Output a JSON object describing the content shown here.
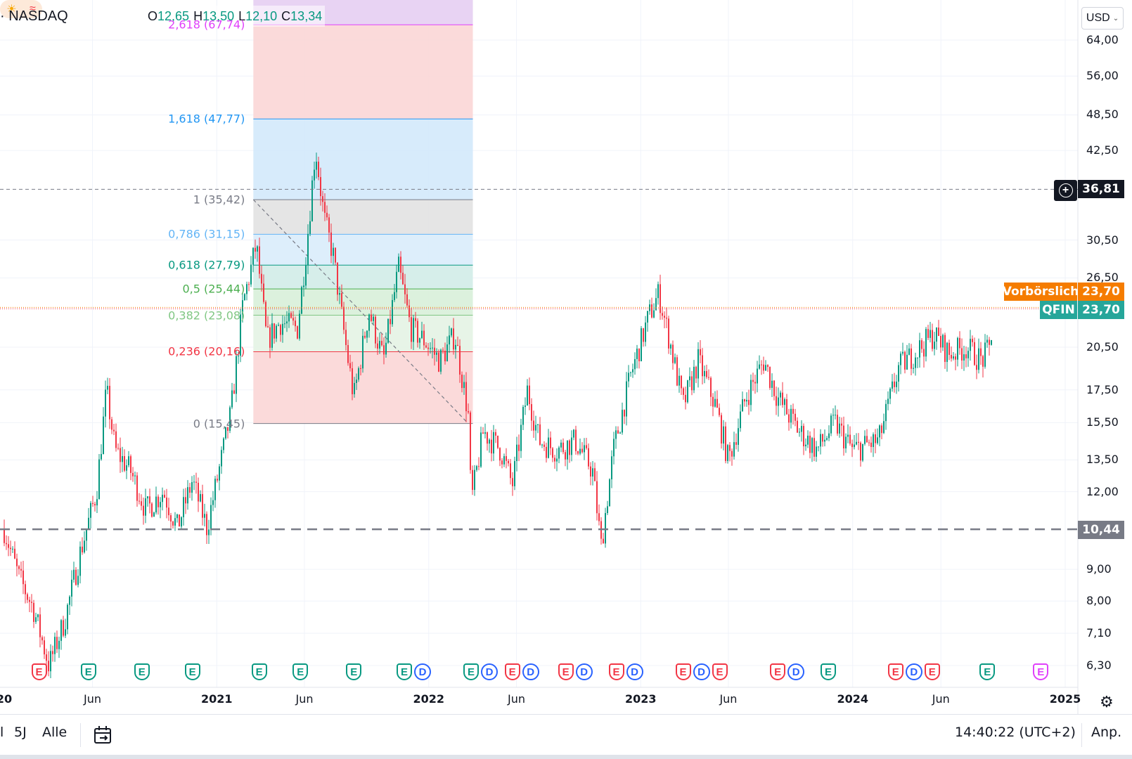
{
  "header": {
    "symbol": "· NASDAQ",
    "open_key": "O",
    "open_val": "12,65",
    "high_key": "H",
    "high_val": "13,50",
    "low_key": "L",
    "low_val": "12,10",
    "close_key": "C",
    "close_val": "13,34",
    "sun_icon": "☀",
    "wave_icon": "≈"
  },
  "currency": {
    "label": "USD",
    "chevron": "⌄"
  },
  "price_tags": {
    "crosshair": "36,81",
    "premarket_label": "Vorbörslich",
    "premarket_value": "23,70",
    "symbol_label": "QFIN",
    "symbol_value": "23,70",
    "support_value": "10,44"
  },
  "time_axis": {
    "labels": [
      "20",
      "Jun",
      "2021",
      "Jun",
      "2022",
      "Jun",
      "2023",
      "Jun",
      "2024",
      "Jun",
      "2025"
    ]
  },
  "bottom_bar": {
    "btn_partial": "l",
    "btn_5y": "5J",
    "btn_all": "Alle",
    "clock": "14:40:22 (UTC+2)",
    "adjust": "Anp."
  },
  "colors": {
    "up": "#089981",
    "down": "#f23645",
    "premarket": "#f57c00",
    "symbol_tag": "#26a69a",
    "support": "#787b86"
  },
  "chart_data": {
    "type": "candlestick",
    "symbol": "QFIN",
    "exchange": "NASDAQ",
    "y_scale": "log",
    "ylim": [
      5.9,
      71
    ],
    "y_ticks": [
      "64,00",
      "56,00",
      "48,50",
      "42,50",
      "30,50",
      "26,50",
      "20,50",
      "17,50",
      "15,50",
      "13,50",
      "12,00",
      "9,00",
      "8,00",
      "7,10",
      "6,30"
    ],
    "x_range": [
      "2020-01",
      "2025-01"
    ],
    "x_labels": [
      "20",
      "Jun",
      "2021",
      "Jun",
      "2022",
      "Jun",
      "2023",
      "Jun",
      "2024",
      "Jun",
      "2025"
    ],
    "price_path": [
      [
        "2020-01-01",
        10.44
      ],
      [
        "2020-01-25",
        8.8
      ],
      [
        "2020-02-20",
        7.8
      ],
      [
        "2020-03-18",
        6.3
      ],
      [
        "2020-04-15",
        7.5
      ],
      [
        "2020-05-10",
        9.5
      ],
      [
        "2020-06-08",
        12.0
      ],
      [
        "2020-06-25",
        17.5
      ],
      [
        "2020-07-10",
        14.0
      ],
      [
        "2020-08-05",
        13.0
      ],
      [
        "2020-09-01",
        11.2
      ],
      [
        "2020-10-01",
        12.0
      ],
      [
        "2020-10-25",
        10.5
      ],
      [
        "2020-11-20",
        12.5
      ],
      [
        "2020-12-15",
        10.5
      ],
      [
        "2021-01-05",
        13.0
      ],
      [
        "2021-01-25",
        16.0
      ],
      [
        "2021-02-15",
        24.0
      ],
      [
        "2021-03-10",
        30.0
      ],
      [
        "2021-03-28",
        21.0
      ],
      [
        "2021-04-20",
        22.5
      ],
      [
        "2021-05-20",
        22.0
      ],
      [
        "2021-06-05",
        30.0
      ],
      [
        "2021-06-20",
        43.0
      ],
      [
        "2021-07-05",
        33.0
      ],
      [
        "2021-07-20",
        29.0
      ],
      [
        "2021-08-10",
        21.0
      ],
      [
        "2021-08-25",
        17.0
      ],
      [
        "2021-09-20",
        23.5
      ],
      [
        "2021-10-15",
        19.5
      ],
      [
        "2021-11-10",
        27.5
      ],
      [
        "2021-12-01",
        22.0
      ],
      [
        "2021-12-25",
        21.0
      ],
      [
        "2022-01-20",
        19.5
      ],
      [
        "2022-02-15",
        21.5
      ],
      [
        "2022-03-10",
        16.0
      ],
      [
        "2022-03-15",
        11.5
      ],
      [
        "2022-04-05",
        15.0
      ],
      [
        "2022-05-05",
        14.0
      ],
      [
        "2022-05-25",
        12.3
      ],
      [
        "2022-06-20",
        17.5
      ],
      [
        "2022-07-10",
        14.5
      ],
      [
        "2022-08-10",
        14.0
      ],
      [
        "2022-09-10",
        14.5
      ],
      [
        "2022-10-10",
        13.0
      ],
      [
        "2022-10-25",
        9.8
      ],
      [
        "2022-11-15",
        14.0
      ],
      [
        "2022-12-15",
        18.5
      ],
      [
        "2023-01-15",
        23.0
      ],
      [
        "2023-02-01",
        25.0
      ],
      [
        "2023-02-20",
        21.0
      ],
      [
        "2023-03-15",
        16.5
      ],
      [
        "2023-04-10",
        19.5
      ],
      [
        "2023-05-10",
        16.5
      ],
      [
        "2023-06-01",
        13.5
      ],
      [
        "2023-07-01",
        17.0
      ],
      [
        "2023-08-01",
        19.5
      ],
      [
        "2023-08-25",
        17.0
      ],
      [
        "2023-10-01",
        15.0
      ],
      [
        "2023-11-01",
        14.0
      ],
      [
        "2023-12-01",
        15.5
      ],
      [
        "2024-01-01",
        14.0
      ],
      [
        "2024-02-15",
        14.5
      ],
      [
        "2024-03-20",
        19.0
      ],
      [
        "2024-04-15",
        20.0
      ],
      [
        "2024-05-20",
        21.5
      ],
      [
        "2024-06-15",
        20.0
      ],
      [
        "2024-07-15",
        20.5
      ],
      [
        "2024-08-10",
        19.5
      ],
      [
        "2024-08-25",
        20.5
      ],
      [
        "2024-08-30",
        23.7
      ]
    ],
    "last_price": 23.7,
    "ohlc_hovered": {
      "open": 12.65,
      "high": 13.5,
      "low": 12.1,
      "close": 13.34
    },
    "crosshair_price": 36.81,
    "horizontal_line": 10.44,
    "fibonacci": {
      "from": [
        "2021-03-05",
        35.42
      ],
      "to": [
        "2022-03-10",
        15.45
      ],
      "x_end": "2022-03-18",
      "levels": [
        {
          "ratio": "2,618",
          "value": "67,74",
          "label": "2,618 (67,74)",
          "color": "#e040fb"
        },
        {
          "ratio": "1,618",
          "value": "47,77",
          "label": "1,618 (47,77)",
          "color": "#2196f3"
        },
        {
          "ratio": "1",
          "value": "35,42",
          "label": "1 (35,42)",
          "color": "#787b86"
        },
        {
          "ratio": "0,786",
          "value": "31,15",
          "label": "0,786 (31,15)",
          "color": "#64b5f6"
        },
        {
          "ratio": "0,618",
          "value": "27,79",
          "label": "0,618 (27,79)",
          "color": "#089981"
        },
        {
          "ratio": "0,5",
          "value": "25,44",
          "label": "0,5 (25,44)",
          "color": "#4caf50"
        },
        {
          "ratio": "0,382",
          "value": "23,08",
          "label": "0,382 (23,08)",
          "color": "#81c784"
        },
        {
          "ratio": "0,236",
          "value": "20,16",
          "label": "0,236 (20,16)",
          "color": "#f23645"
        },
        {
          "ratio": "0",
          "value": "15,45",
          "label": "0 (15,45)",
          "color": "#787b86"
        }
      ]
    },
    "events": [
      {
        "date": "2020-03-01",
        "items": [
          "E"
        ],
        "color": "#f23645"
      },
      {
        "date": "2020-05-25",
        "items": [
          "E"
        ],
        "color": "#089981"
      },
      {
        "date": "2020-08-25",
        "items": [
          "E"
        ],
        "color": "#089981"
      },
      {
        "date": "2020-11-20",
        "items": [
          "E"
        ],
        "color": "#089981"
      },
      {
        "date": "2021-03-15",
        "items": [
          "E"
        ],
        "color": "#089981"
      },
      {
        "date": "2021-05-25",
        "items": [
          "E"
        ],
        "color": "#089981"
      },
      {
        "date": "2021-08-25",
        "items": [
          "E"
        ],
        "color": "#089981"
      },
      {
        "date": "2021-11-20",
        "items": [
          "E",
          "D"
        ],
        "color": "#089981"
      },
      {
        "date": "2022-03-15",
        "items": [
          "E",
          "D"
        ],
        "color": "#089981"
      },
      {
        "date": "2022-05-25",
        "items": [
          "E",
          "D"
        ],
        "color": "#f23645"
      },
      {
        "date": "2022-08-25",
        "items": [
          "E",
          "D"
        ],
        "color": "#f23645"
      },
      {
        "date": "2022-11-20",
        "items": [
          "E",
          "D"
        ],
        "color": "#f23645"
      },
      {
        "date": "2023-03-15",
        "items": [
          "E",
          "D",
          "E"
        ],
        "color": "#f23645"
      },
      {
        "date": "2023-08-25",
        "items": [
          "E",
          "D"
        ],
        "color": "#f23645"
      },
      {
        "date": "2023-11-20",
        "items": [
          "E"
        ],
        "color": "#089981"
      },
      {
        "date": "2024-03-15",
        "items": [
          "E",
          "D",
          "E"
        ],
        "color": "#f23645"
      },
      {
        "date": "2024-08-20",
        "items": [
          "E"
        ],
        "color": "#089981"
      },
      {
        "date": "2024-11-20",
        "items": [
          "E"
        ],
        "color": "#e040fb"
      }
    ]
  }
}
